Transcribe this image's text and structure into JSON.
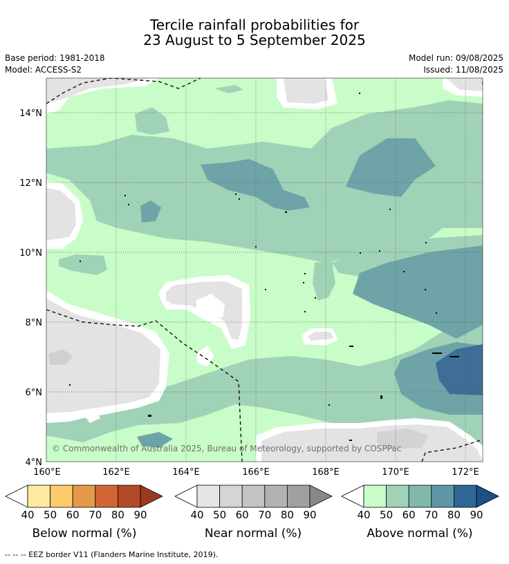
{
  "header": {
    "title_line1": "Tercile rainfall probabilities for",
    "title_line2": "23 August to 5 September 2025",
    "base_period": "Base period: 1981-2018",
    "model": "Model: ACCESS-S2",
    "model_run": "Model run: 09/08/2025",
    "issued": "Issued: 11/08/2025"
  },
  "map": {
    "lat_labels": [
      "14°N",
      "12°N",
      "10°N",
      "8°N",
      "6°N",
      "4°N"
    ],
    "lon_labels": [
      "160°E",
      "162°E",
      "164°E",
      "166°E",
      "168°E",
      "170°E",
      "172°E"
    ],
    "copyright": "© Commonwealth of Australia 2025, Bureau of Meteorology, supported by COSPPac"
  },
  "legends": [
    {
      "label": "Below normal (%)",
      "ticks": [
        "40",
        "50",
        "60",
        "70",
        "80",
        "90"
      ],
      "colors": [
        "#fdeaa0",
        "#fdcb6b",
        "#e49a4a",
        "#d26535",
        "#b34a28",
        "#9a3a22"
      ]
    },
    {
      "label": "Near normal (%)",
      "ticks": [
        "40",
        "50",
        "60",
        "70",
        "80",
        "90"
      ],
      "colors": [
        "#e6e6e6",
        "#d5d5d5",
        "#c4c4c4",
        "#b2b2b2",
        "#a0a0a0",
        "#888888"
      ]
    },
    {
      "label": "Above normal (%)",
      "ticks": [
        "40",
        "50",
        "60",
        "70",
        "80",
        "90"
      ],
      "colors": [
        "#c8fcc8",
        "#a0d2b8",
        "#80b8aa",
        "#5e96a6",
        "#2e6696",
        "#1e4f86"
      ]
    }
  ],
  "footnote": "-- -- -- EEZ border V11 (Flanders Marine Institute, 2019)."
}
